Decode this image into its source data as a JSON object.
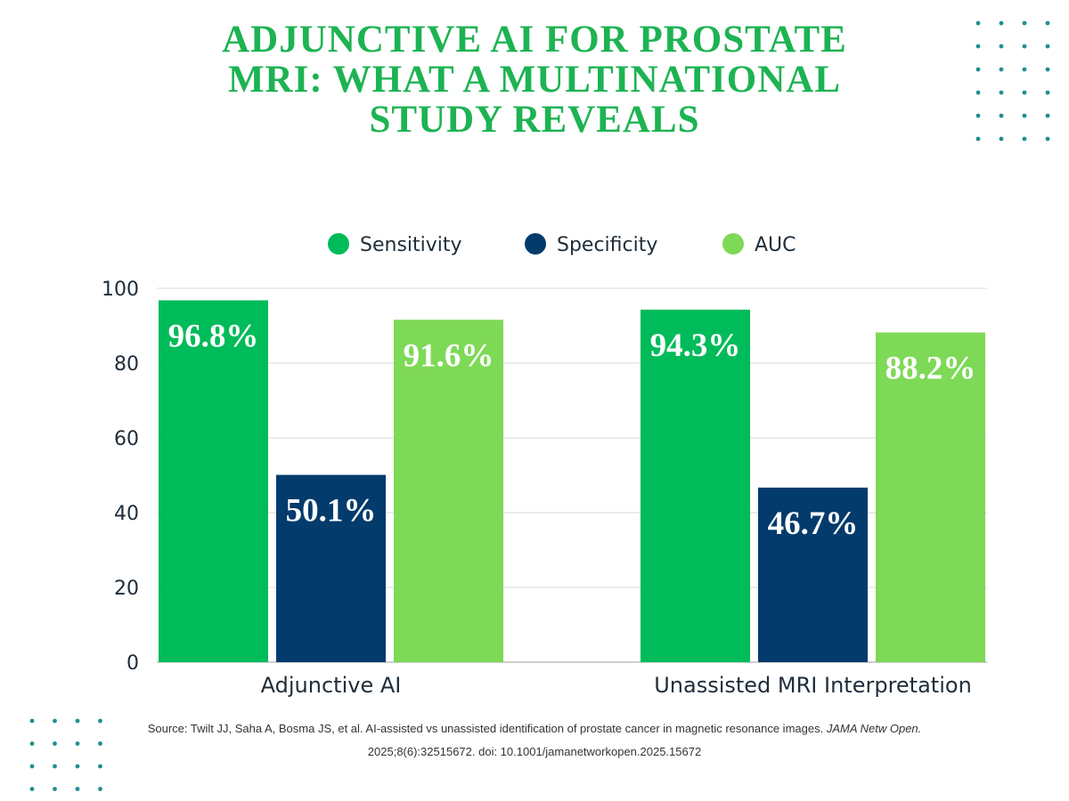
{
  "title": "ADJUNCTIVE AI FOR PROSTATE MRI: WHAT A MULTINATIONAL STUDY REVEALS",
  "colors": {
    "title": "#1db352",
    "sensitivity": "#00bb5a",
    "specificity": "#023b6c",
    "auc": "#7ed957",
    "dots": "#1f8f8f",
    "grid": "#d9d9d9",
    "text": "#1f2d3a"
  },
  "chart_data": {
    "type": "bar",
    "categories": [
      "Adjunctive AI",
      "Unassisted MRI Interpretation"
    ],
    "series": [
      {
        "name": "Sensitivity",
        "values": [
          96.8,
          94.3
        ],
        "labels": [
          "96.8%",
          "94.3%"
        ]
      },
      {
        "name": "Specificity",
        "values": [
          50.1,
          46.7
        ],
        "labels": [
          "50.1%",
          "46.7%"
        ]
      },
      {
        "name": "AUC",
        "values": [
          91.6,
          88.2
        ],
        "labels": [
          "91.6%",
          "88.2%"
        ]
      }
    ],
    "ylim": [
      0,
      100
    ],
    "yticks": [
      0,
      20,
      40,
      60,
      80,
      100
    ],
    "grid": true,
    "legend": "top-center"
  },
  "source": {
    "prefix": "Source:  Twilt JJ, Saha A, Bosma JS, et al. AI-assisted vs unassisted identification of prostate cancer in magnetic resonance images.",
    "journal": "JAMA Netw Open.",
    "suffix": "2025;8(6):32515672. doi: 10.1001/jamanetworkopen.2025.15672"
  }
}
